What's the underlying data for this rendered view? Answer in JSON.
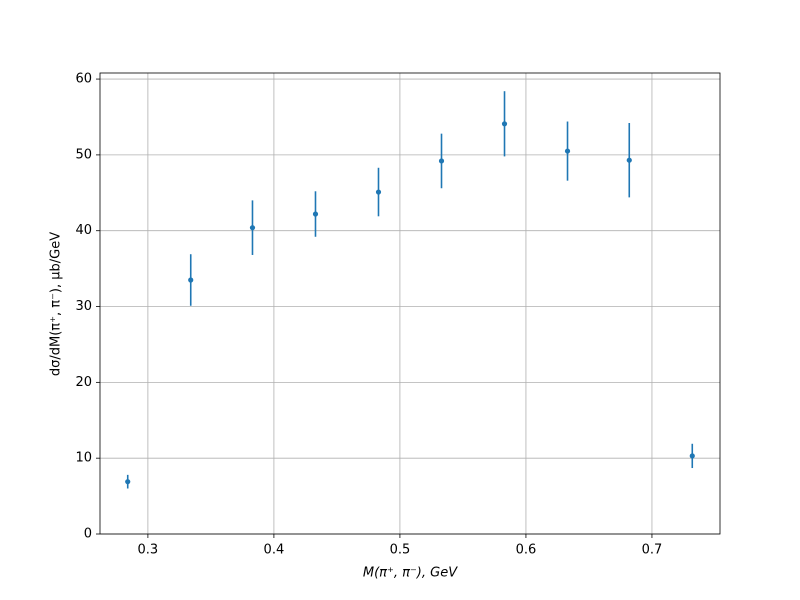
{
  "chart_data": {
    "type": "errorbar",
    "x_label": "M(π⁺, π⁻), GeV",
    "y_label": "dσ/dM(π⁺, π⁻), μb/GeV",
    "x": [
      0.284,
      0.334,
      0.383,
      0.433,
      0.483,
      0.533,
      0.583,
      0.633,
      0.682,
      0.732
    ],
    "series": [
      {
        "color": "#1f77b4",
        "values": [
          6.9,
          33.5,
          40.4,
          42.2,
          45.1,
          49.2,
          54.1,
          50.5,
          49.3,
          10.3
        ],
        "errors": [
          0.9,
          3.4,
          3.6,
          3.0,
          3.2,
          3.6,
          4.3,
          3.9,
          4.9,
          1.6
        ]
      }
    ],
    "xlim": [
      0.262,
      0.754
    ],
    "ylim": [
      0,
      60.8
    ],
    "xticks": [
      0.3,
      0.4,
      0.5,
      0.6,
      0.7
    ],
    "yticks": [
      0,
      10,
      20,
      30,
      40,
      50,
      60
    ],
    "grid": true
  }
}
